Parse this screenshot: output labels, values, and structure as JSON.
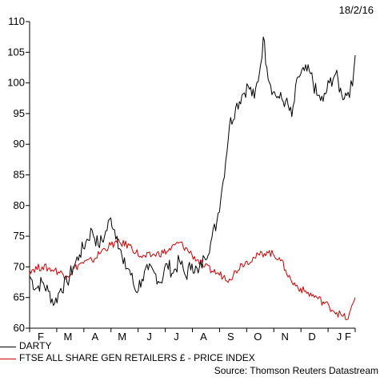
{
  "header": {
    "date": "18/2/16"
  },
  "source": "Source: Thomson Reuters Datastream",
  "colors": {
    "darty": "#000000",
    "ftse": "#cc0000",
    "axis": "#000000"
  },
  "chart_data": {
    "type": "line",
    "title": "",
    "xlabel": "",
    "ylabel": "",
    "x_tick_labels": [
      "F",
      "M",
      "A",
      "M",
      "J",
      "J",
      "A",
      "S",
      "O",
      "N",
      "D",
      "J",
      "F"
    ],
    "x_range": [
      "2015-02-18",
      "2016-02-18"
    ],
    "ylim": [
      60,
      110
    ],
    "y_ticks": [
      60,
      65,
      70,
      75,
      80,
      85,
      90,
      95,
      100,
      105,
      110
    ],
    "grid": false,
    "legend_position": "bottom-left",
    "series": [
      {
        "name": "DARTY",
        "color": "#000000",
        "points": [
          [
            "2015-02-18",
            68.5
          ],
          [
            "2015-02-25",
            66.5
          ],
          [
            "2015-03-04",
            67.5
          ],
          [
            "2015-03-11",
            66.0
          ],
          [
            "2015-03-18",
            64.0
          ],
          [
            "2015-03-25",
            66.5
          ],
          [
            "2015-04-01",
            67.5
          ],
          [
            "2015-04-08",
            70.0
          ],
          [
            "2015-04-15",
            72.0
          ],
          [
            "2015-04-22",
            74.0
          ],
          [
            "2015-04-29",
            76.0
          ],
          [
            "2015-05-06",
            73.5
          ],
          [
            "2015-05-13",
            75.0
          ],
          [
            "2015-05-20",
            78.0
          ],
          [
            "2015-05-27",
            75.0
          ],
          [
            "2015-06-03",
            70.5
          ],
          [
            "2015-06-10",
            69.5
          ],
          [
            "2015-06-17",
            66.0
          ],
          [
            "2015-06-24",
            68.0
          ],
          [
            "2015-07-01",
            69.5
          ],
          [
            "2015-07-08",
            69.0
          ],
          [
            "2015-07-15",
            67.5
          ],
          [
            "2015-07-22",
            70.5
          ],
          [
            "2015-07-29",
            69.0
          ],
          [
            "2015-08-05",
            71.0
          ],
          [
            "2015-08-12",
            68.5
          ],
          [
            "2015-08-19",
            70.5
          ],
          [
            "2015-08-26",
            69.0
          ],
          [
            "2015-09-02",
            71.5
          ],
          [
            "2015-09-09",
            74.0
          ],
          [
            "2015-09-16",
            77.5
          ],
          [
            "2015-09-23",
            84.0
          ],
          [
            "2015-09-30",
            93.0
          ],
          [
            "2015-10-07",
            96.0
          ],
          [
            "2015-10-14",
            98.0
          ],
          [
            "2015-10-21",
            99.5
          ],
          [
            "2015-10-28",
            97.5
          ],
          [
            "2015-11-04",
            103.0
          ],
          [
            "2015-11-07",
            107.5
          ],
          [
            "2015-11-11",
            102.5
          ],
          [
            "2015-11-18",
            98.5
          ],
          [
            "2015-11-25",
            97.5
          ],
          [
            "2015-12-02",
            97.0
          ],
          [
            "2015-12-09",
            94.5
          ],
          [
            "2015-12-16",
            101.0
          ],
          [
            "2015-12-23",
            102.0
          ],
          [
            "2015-12-30",
            101.5
          ],
          [
            "2016-01-06",
            98.0
          ],
          [
            "2016-01-13",
            97.0
          ],
          [
            "2016-01-20",
            100.0
          ],
          [
            "2016-01-27",
            101.5
          ],
          [
            "2016-02-03",
            98.0
          ],
          [
            "2016-02-10",
            98.5
          ],
          [
            "2016-02-15",
            99.5
          ],
          [
            "2016-02-18",
            104.5
          ]
        ]
      },
      {
        "name": "FTSE ALL SHARE GEN RETAILERS £ - PRICE INDEX",
        "color": "#cc0000",
        "points": [
          [
            "2015-02-18",
            69.5
          ],
          [
            "2015-03-04",
            70.0
          ],
          [
            "2015-03-18",
            69.5
          ],
          [
            "2015-04-01",
            68.5
          ],
          [
            "2015-04-15",
            70.5
          ],
          [
            "2015-04-29",
            71.0
          ],
          [
            "2015-05-13",
            73.0
          ],
          [
            "2015-05-27",
            74.0
          ],
          [
            "2015-06-10",
            73.5
          ],
          [
            "2015-06-24",
            71.5
          ],
          [
            "2015-07-08",
            72.0
          ],
          [
            "2015-07-22",
            72.5
          ],
          [
            "2015-08-05",
            74.0
          ],
          [
            "2015-08-19",
            72.0
          ],
          [
            "2015-09-02",
            70.0
          ],
          [
            "2015-09-16",
            69.0
          ],
          [
            "2015-09-30",
            68.0
          ],
          [
            "2015-10-14",
            70.5
          ],
          [
            "2015-10-28",
            71.5
          ],
          [
            "2015-11-11",
            72.5
          ],
          [
            "2015-11-25",
            71.5
          ],
          [
            "2015-12-02",
            69.5
          ],
          [
            "2015-12-09",
            67.5
          ],
          [
            "2015-12-23",
            66.0
          ],
          [
            "2016-01-06",
            65.0
          ],
          [
            "2016-01-20",
            63.5
          ],
          [
            "2016-02-03",
            62.0
          ],
          [
            "2016-02-10",
            61.5
          ],
          [
            "2016-02-18",
            65.0
          ]
        ]
      }
    ]
  }
}
